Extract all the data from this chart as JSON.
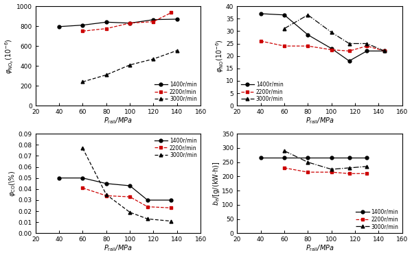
{
  "subplot1": {
    "ylabel": "$\\varphi_{\\mathrm{NO}_x}(10^{-6})$",
    "xlabel": "$P_{\\mathrm{rail}}$/MPa",
    "xlim": [
      20,
      160
    ],
    "ylim": [
      0,
      1000
    ],
    "yticks": [
      0,
      200,
      400,
      600,
      800,
      1000
    ],
    "xticks": [
      20,
      40,
      60,
      80,
      100,
      120,
      140,
      160
    ],
    "legend_loc": "lower right",
    "series": [
      {
        "label": "1400r/min",
        "x": [
          40,
          60,
          80,
          100,
          120,
          140
        ],
        "y": [
          795,
          810,
          840,
          830,
          865,
          870
        ],
        "color": "#000000",
        "linestyle": "-",
        "marker": "o"
      },
      {
        "label": "2200r/min",
        "x": [
          60,
          80,
          100,
          120,
          135
        ],
        "y": [
          750,
          775,
          830,
          845,
          935
        ],
        "color": "#cc0000",
        "linestyle": "--",
        "marker": "s"
      },
      {
        "label": "3000r/min",
        "x": [
          60,
          80,
          100,
          120,
          140
        ],
        "y": [
          240,
          310,
          410,
          470,
          555
        ],
        "color": "#000000",
        "linestyle": "--",
        "marker": "^",
        "dashes": [
          4,
          2
        ]
      }
    ]
  },
  "subplot2": {
    "ylabel": "$\\varphi_{\\mathrm{NO}}(10^{-6})$",
    "xlabel": "$P_{\\mathrm{rail}}$/MPa",
    "xlim": [
      20,
      160
    ],
    "ylim": [
      0,
      40
    ],
    "yticks": [
      0,
      5,
      10,
      15,
      20,
      25,
      30,
      35,
      40
    ],
    "xticks": [
      20,
      40,
      60,
      80,
      100,
      120,
      140,
      160
    ],
    "legend_loc": "lower left",
    "series": [
      {
        "label": "1400r/min",
        "x": [
          40,
          60,
          80,
          100,
          115,
          130,
          145
        ],
        "y": [
          37,
          36.5,
          28.5,
          23,
          18,
          22,
          22
        ],
        "color": "#000000",
        "linestyle": "-",
        "marker": "o"
      },
      {
        "label": "2200r/min",
        "x": [
          40,
          60,
          80,
          100,
          115,
          130,
          145
        ],
        "y": [
          26,
          24,
          24,
          22.5,
          22,
          24,
          22
        ],
        "color": "#cc0000",
        "linestyle": "--",
        "marker": "s"
      },
      {
        "label": "3000r/min",
        "x": [
          60,
          80,
          100,
          115,
          130,
          145
        ],
        "y": [
          31,
          36.5,
          29.5,
          25,
          25,
          22
        ],
        "color": "#000000",
        "linestyle": "-.",
        "marker": "^"
      }
    ]
  },
  "subplot3": {
    "ylabel": "$\\varphi_{\\mathrm{CO}}$(\\%)",
    "xlabel": "$P_{\\mathrm{rail}}$/MPa",
    "xlim": [
      20,
      160
    ],
    "ylim": [
      0,
      0.09
    ],
    "yticks": [
      0,
      0.01,
      0.02,
      0.03,
      0.04,
      0.05,
      0.06,
      0.07,
      0.08,
      0.09
    ],
    "xticks": [
      20,
      40,
      60,
      80,
      100,
      120,
      140,
      160
    ],
    "legend_loc": "upper right",
    "series": [
      {
        "label": "1400r/min",
        "x": [
          40,
          60,
          80,
          100,
          115,
          135
        ],
        "y": [
          0.05,
          0.05,
          0.045,
          0.043,
          0.03,
          0.03
        ],
        "color": "#000000",
        "linestyle": "-",
        "marker": "o"
      },
      {
        "label": "2200r/min",
        "x": [
          60,
          80,
          100,
          115,
          135
        ],
        "y": [
          0.041,
          0.034,
          0.033,
          0.024,
          0.023
        ],
        "color": "#cc0000",
        "linestyle": "--",
        "marker": "s"
      },
      {
        "label": "3000r/min",
        "x": [
          60,
          80,
          100,
          115,
          135
        ],
        "y": [
          0.077,
          0.035,
          0.019,
          0.013,
          0.011
        ],
        "color": "#000000",
        "linestyle": "--",
        "marker": "^",
        "dashes": [
          4,
          2
        ]
      }
    ]
  },
  "subplot4": {
    "ylabel": "$b_e$/[g/(kW$\\cdot$h)]",
    "xlabel": "$P_{\\mathrm{rail}}$/MPa",
    "xlim": [
      20,
      160
    ],
    "ylim": [
      0,
      350
    ],
    "yticks": [
      0,
      50,
      100,
      150,
      200,
      250,
      300,
      350
    ],
    "xticks": [
      20,
      40,
      60,
      80,
      100,
      120,
      140,
      160
    ],
    "legend_loc": "lower right",
    "series": [
      {
        "label": "1400r/min",
        "x": [
          40,
          60,
          80,
          100,
          115,
          130
        ],
        "y": [
          265,
          265,
          265,
          265,
          265,
          265
        ],
        "color": "#000000",
        "linestyle": "-",
        "marker": "o"
      },
      {
        "label": "2200r/min",
        "x": [
          60,
          80,
          100,
          115,
          130
        ],
        "y": [
          230,
          215,
          215,
          210,
          210
        ],
        "color": "#cc0000",
        "linestyle": "--",
        "marker": "s"
      },
      {
        "label": "3000r/min",
        "x": [
          60,
          80,
          100,
          115,
          130
        ],
        "y": [
          290,
          250,
          225,
          230,
          235
        ],
        "color": "#000000",
        "linestyle": "-.",
        "marker": "^"
      }
    ]
  }
}
